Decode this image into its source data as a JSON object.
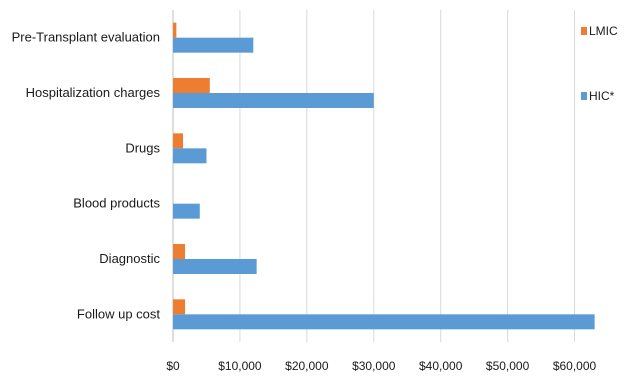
{
  "chart_data": {
    "type": "bar",
    "orientation": "horizontal",
    "categories": [
      "Pre-Transplant evaluation",
      "Hospitalization charges",
      "Drugs",
      "Blood products",
      "Diagnostic",
      "Follow up cost"
    ],
    "series": [
      {
        "name": "LMIC",
        "color": "#ed7d31",
        "values": [
          500,
          5500,
          1500,
          0,
          1800,
          1800
        ]
      },
      {
        "name": "HIC*",
        "color": "#5b9bd5",
        "values": [
          12000,
          30000,
          5000,
          4000,
          12500,
          63000
        ]
      }
    ],
    "xlim": [
      0,
      65000
    ],
    "xticks": [
      0,
      10000,
      20000,
      30000,
      40000,
      50000,
      60000
    ],
    "xtick_labels": [
      "$0",
      "$10,000",
      "$20,000",
      "$30,000",
      "$40,000",
      "$50,000",
      "$60,000"
    ],
    "grid": true,
    "legend_position": "right"
  }
}
